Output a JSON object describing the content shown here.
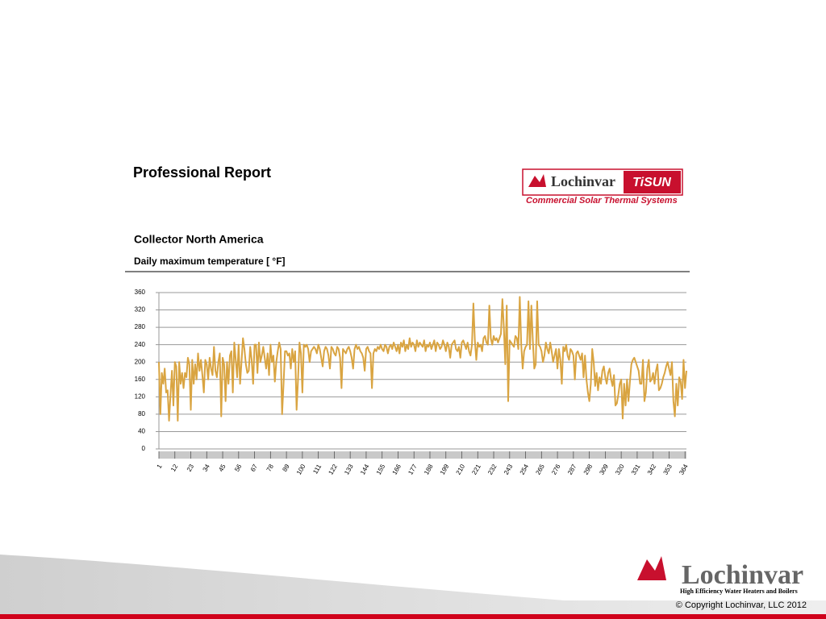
{
  "header": {
    "title": "Professional Report"
  },
  "logo_top": {
    "brand": "Lochinvar",
    "tisun": "TiSUN",
    "tagline": "Commercial Solar Thermal Systems"
  },
  "chart_data": {
    "type": "line",
    "title": "Collector North America",
    "subtitle": "Daily maximum temperature [ °F]",
    "x": [
      1,
      2,
      3,
      4,
      5,
      6,
      7,
      8,
      9,
      10,
      11,
      12,
      13,
      14,
      15,
      16,
      17,
      18,
      19,
      20,
      21,
      22,
      23,
      24,
      25,
      26,
      27,
      28,
      29,
      30,
      31,
      32,
      33,
      34,
      35,
      36,
      37,
      38,
      39,
      40,
      41,
      42,
      43,
      44,
      45,
      46,
      47,
      48,
      49,
      50,
      51,
      52,
      53,
      54,
      55,
      56,
      57,
      58,
      59,
      60,
      61,
      62,
      63,
      64,
      65,
      66,
      67,
      68,
      69,
      70,
      71,
      72,
      73,
      74,
      75,
      76,
      77,
      78,
      79,
      80,
      81,
      82,
      83,
      84,
      85,
      86,
      87,
      88,
      89,
      90,
      91,
      92,
      93,
      94,
      95,
      96,
      97,
      98,
      99,
      100,
      101,
      102,
      103,
      104,
      105,
      106,
      107,
      108,
      109,
      110,
      111,
      112,
      113,
      114,
      115,
      116,
      117,
      118,
      119,
      120,
      121,
      122,
      123,
      124,
      125,
      126,
      127,
      128,
      129,
      130,
      131,
      132,
      133,
      134,
      135,
      136,
      137,
      138,
      139,
      140,
      141,
      142,
      143,
      144,
      145,
      146,
      147,
      148,
      149,
      150,
      151,
      152,
      153,
      154,
      155,
      156,
      157,
      158,
      159,
      160,
      161,
      162,
      163,
      164,
      165,
      166,
      167,
      168,
      169,
      170,
      171,
      172,
      173,
      174,
      175,
      176,
      177,
      178,
      179,
      180,
      181,
      182,
      183,
      184,
      185,
      186,
      187,
      188,
      189,
      190,
      191,
      192,
      193,
      194,
      195,
      196,
      197,
      198,
      199,
      200,
      201,
      202,
      203,
      204,
      205,
      206,
      207,
      208,
      209,
      210,
      211,
      212,
      213,
      214,
      215,
      216,
      217,
      218,
      219,
      220,
      221,
      222,
      223,
      224,
      225,
      226,
      227,
      228,
      229,
      230,
      231,
      232,
      233,
      234,
      235,
      236,
      237,
      238,
      239,
      240,
      241,
      242,
      243,
      244,
      245,
      246,
      247,
      248,
      249,
      250,
      251,
      252,
      253,
      254,
      255,
      256,
      257,
      258,
      259,
      260,
      261,
      262,
      263,
      264,
      265,
      266,
      267,
      268,
      269,
      270,
      271,
      272,
      273,
      274,
      275,
      276,
      277,
      278,
      279,
      280,
      281,
      282,
      283,
      284,
      285,
      286,
      287,
      288,
      289,
      290,
      291,
      292,
      293,
      294,
      295,
      296,
      297,
      298,
      299,
      300,
      301,
      302,
      303,
      304,
      305,
      306,
      307,
      308,
      309,
      310,
      311,
      312,
      313,
      314,
      315,
      316,
      317,
      318,
      319,
      320,
      321,
      322,
      323,
      324,
      325,
      326,
      327,
      328,
      329,
      330,
      331,
      332,
      333,
      334,
      335,
      336,
      337,
      338,
      339,
      340,
      341,
      342,
      343,
      344,
      345,
      346,
      347,
      348,
      349,
      350,
      351,
      352,
      353,
      354,
      355,
      356,
      357,
      358,
      359,
      360,
      361,
      362,
      363,
      364,
      365
    ],
    "values": [
      200,
      80,
      175,
      150,
      185,
      130,
      135,
      65,
      125,
      180,
      100,
      200,
      190,
      65,
      200,
      150,
      175,
      140,
      175,
      165,
      210,
      195,
      90,
      205,
      150,
      195,
      160,
      220,
      180,
      205,
      170,
      130,
      205,
      195,
      160,
      210,
      185,
      170,
      235,
      180,
      165,
      200,
      220,
      75,
      210,
      195,
      110,
      200,
      150,
      215,
      225,
      130,
      245,
      205,
      165,
      240,
      150,
      200,
      255,
      230,
      195,
      175,
      180,
      235,
      205,
      150,
      240,
      240,
      175,
      245,
      200,
      215,
      235,
      210,
      185,
      220,
      170,
      240,
      200,
      215,
      155,
      200,
      225,
      245,
      230,
      80,
      150,
      225,
      225,
      215,
      220,
      185,
      230,
      200,
      225,
      90,
      160,
      245,
      220,
      130,
      240,
      235,
      240,
      230,
      200,
      225,
      230,
      235,
      230,
      220,
      240,
      230,
      210,
      190,
      225,
      235,
      230,
      215,
      185,
      235,
      230,
      220,
      215,
      235,
      230,
      210,
      140,
      230,
      225,
      220,
      230,
      235,
      225,
      210,
      185,
      230,
      240,
      230,
      235,
      225,
      220,
      210,
      180,
      230,
      235,
      225,
      220,
      140,
      220,
      230,
      225,
      235,
      230,
      240,
      230,
      225,
      240,
      235,
      220,
      235,
      240,
      230,
      245,
      235,
      225,
      240,
      220,
      245,
      235,
      250,
      225,
      240,
      230,
      255,
      235,
      245,
      240,
      225,
      250,
      235,
      245,
      240,
      235,
      250,
      225,
      240,
      235,
      245,
      230,
      240,
      250,
      225,
      245,
      240,
      230,
      235,
      250,
      240,
      225,
      245,
      235,
      210,
      240,
      245,
      250,
      230,
      225,
      235,
      210,
      245,
      250,
      240,
      230,
      245,
      225,
      215,
      240,
      335,
      250,
      205,
      245,
      235,
      240,
      225,
      255,
      260,
      245,
      240,
      330,
      255,
      240,
      260,
      250,
      255,
      245,
      255,
      265,
      345,
      280,
      195,
      330,
      110,
      250,
      245,
      240,
      235,
      260,
      255,
      230,
      350,
      240,
      185,
      225,
      235,
      240,
      340,
      230,
      330,
      250,
      185,
      195,
      340,
      240,
      235,
      225,
      200,
      215,
      245,
      230,
      220,
      245,
      225,
      200,
      215,
      230,
      185,
      230,
      205,
      150,
      235,
      225,
      240,
      215,
      205,
      230,
      225,
      215,
      160,
      220,
      225,
      215,
      205,
      220,
      165,
      215,
      160,
      130,
      110,
      150,
      230,
      200,
      145,
      175,
      135,
      165,
      150,
      180,
      190,
      165,
      150,
      175,
      185,
      160,
      145,
      170,
      100,
      105,
      125,
      150,
      160,
      70,
      150,
      100,
      160,
      110,
      155,
      195,
      205,
      210,
      200,
      190,
      180,
      150,
      150,
      205,
      110,
      130,
      185,
      205,
      155,
      160,
      175,
      150,
      180,
      195,
      135,
      140,
      150,
      165,
      175,
      190,
      200,
      185,
      170,
      200,
      110,
      75,
      150,
      100,
      165,
      155,
      115,
      205,
      140,
      180
    ],
    "color": "#d9a441",
    "xlim": [
      1,
      365
    ],
    "xticks": [
      1,
      12,
      23,
      34,
      45,
      56,
      67,
      78,
      89,
      100,
      111,
      122,
      133,
      144,
      155,
      166,
      177,
      188,
      199,
      210,
      221,
      232,
      243,
      254,
      265,
      276,
      287,
      298,
      309,
      320,
      331,
      342,
      353,
      364
    ],
    "ylim": [
      0,
      360
    ],
    "yticks": [
      0,
      40,
      80,
      120,
      160,
      200,
      240,
      280,
      320,
      360
    ],
    "grid": true
  },
  "footer": {
    "brand": "Lochinvar",
    "tagline": "High Efficiency Water Heaters and Boilers",
    "copyright": "© Copyright Lochinvar, LLC  2012"
  }
}
